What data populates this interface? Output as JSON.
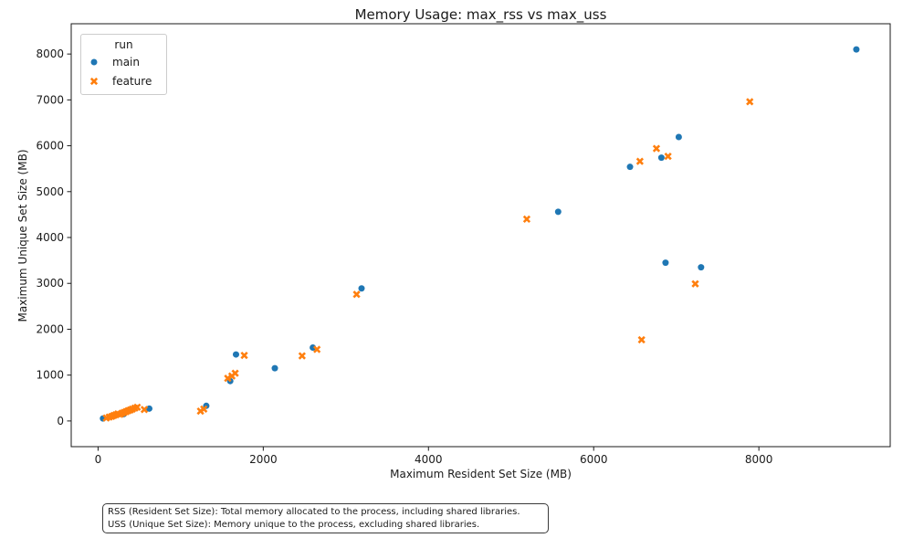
{
  "title": "Memory Usage: max_rss vs max_uss",
  "legend": {
    "title": "run",
    "entries": [
      {
        "label": "main",
        "marker": "circle",
        "color": "#1f77b4"
      },
      {
        "label": "feature",
        "marker": "x",
        "color": "#ff7f0e"
      }
    ]
  },
  "footnote": {
    "line1": "RSS (Resident Set Size): Total memory allocated to the process, including shared libraries.",
    "line2": "USS (Unique Set Size): Memory unique to the process, excluding shared libraries."
  },
  "chart_data": {
    "type": "scatter",
    "title": "Memory Usage: max_rss vs max_uss",
    "xlabel": "Maximum Resident Set Size (MB)",
    "ylabel": "Maximum Unique Set Size (MB)",
    "xlim": [
      -325,
      9590
    ],
    "ylim": [
      -560,
      8660
    ],
    "xticks": [
      0,
      2000,
      4000,
      6000,
      8000
    ],
    "yticks": [
      0,
      1000,
      2000,
      3000,
      4000,
      5000,
      6000,
      7000,
      8000
    ],
    "grid": false,
    "legend_position": "upper left",
    "legend_title": "run",
    "series": [
      {
        "name": "main",
        "marker": "circle",
        "color": "#1f77b4",
        "points": [
          [
            60,
            55
          ],
          [
            310,
            150
          ],
          [
            620,
            270
          ],
          [
            1310,
            330
          ],
          [
            1600,
            870
          ],
          [
            1670,
            1450
          ],
          [
            2140,
            1150
          ],
          [
            2600,
            1600
          ],
          [
            3190,
            2890
          ],
          [
            5570,
            4560
          ],
          [
            6440,
            5540
          ],
          [
            6820,
            5740
          ],
          [
            7030,
            6190
          ],
          [
            6870,
            3450
          ],
          [
            7300,
            3350
          ],
          [
            9180,
            8100
          ]
        ]
      },
      {
        "name": "feature",
        "marker": "x",
        "color": "#ff7f0e",
        "points": [
          [
            100,
            65
          ],
          [
            135,
            85
          ],
          [
            165,
            100
          ],
          [
            190,
            120
          ],
          [
            215,
            135
          ],
          [
            240,
            155
          ],
          [
            265,
            145
          ],
          [
            290,
            170
          ],
          [
            315,
            185
          ],
          [
            340,
            205
          ],
          [
            365,
            225
          ],
          [
            390,
            240
          ],
          [
            415,
            260
          ],
          [
            445,
            280
          ],
          [
            475,
            300
          ],
          [
            560,
            250
          ],
          [
            1240,
            215
          ],
          [
            1280,
            260
          ],
          [
            1570,
            930
          ],
          [
            1620,
            980
          ],
          [
            1660,
            1040
          ],
          [
            1770,
            1430
          ],
          [
            2470,
            1420
          ],
          [
            2650,
            1560
          ],
          [
            3130,
            2760
          ],
          [
            5190,
            4400
          ],
          [
            6560,
            5660
          ],
          [
            6760,
            5940
          ],
          [
            6900,
            5770
          ],
          [
            6580,
            1770
          ],
          [
            7230,
            2990
          ],
          [
            7890,
            6960
          ]
        ]
      }
    ]
  }
}
